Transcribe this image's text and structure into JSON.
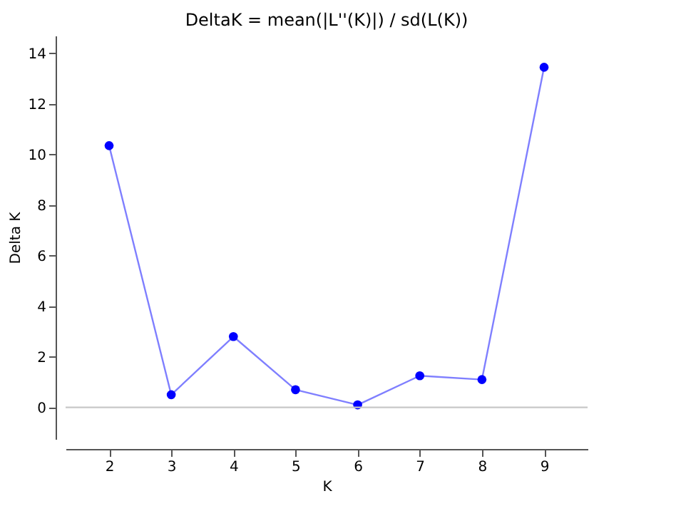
{
  "chart_data": {
    "type": "line",
    "title": "DeltaK = mean(|L''(K)|) / sd(L(K))",
    "xlabel": "K",
    "ylabel": "Delta K",
    "x": [
      2,
      3,
      4,
      5,
      6,
      7,
      8,
      9
    ],
    "series": [
      {
        "color": "#0000ff",
        "values": [
          10.35,
          0.5,
          2.8,
          0.7,
          0.1,
          1.25,
          1.1,
          13.45
        ]
      }
    ],
    "xlim": [
      1.3,
      9.7
    ],
    "xticks": [
      2,
      3,
      4,
      5,
      6,
      7,
      8,
      9
    ],
    "ylim": [
      -1.25,
      14.7
    ],
    "yticks": [
      0,
      2,
      4,
      6,
      8,
      10,
      12,
      14
    ],
    "ref_lines": [
      {
        "axis": "y",
        "value": 0,
        "color": "#c8c8c8"
      }
    ],
    "grid": false,
    "legend": false,
    "marker": "circle",
    "line_style": "solid"
  }
}
